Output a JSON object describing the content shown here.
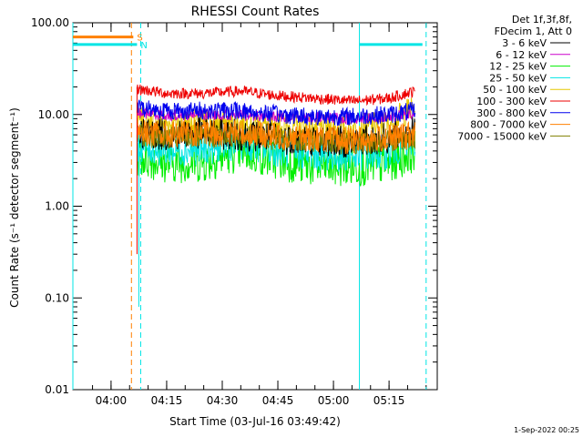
{
  "chart_data": {
    "type": "line",
    "title": "RHESSI Count Rates",
    "xlabel": "Start Time (03-Jul-16 03:49:42)",
    "ylabel": "Count Rate (s⁻¹ detector segment⁻¹)",
    "yscale": "log",
    "ylim": [
      0.01,
      100
    ],
    "xlim": [
      "03:49:42",
      "05:28:00"
    ],
    "x_ticks": [
      "04:00",
      "04:15",
      "04:30",
      "04:45",
      "05:00",
      "05:15"
    ],
    "y_ticks": [
      "0.01",
      "0.10",
      "1.00",
      "10.00",
      "100.00"
    ],
    "legend_header": [
      "Det 1f,3f,8f,",
      "FDecim 1, Att 0"
    ],
    "legend_position": "top-right",
    "footer_date": "1-Sep-2022 00:25",
    "series": [
      {
        "name": "3 - 6 keV",
        "color": "#000000",
        "x": [
          "04:07",
          "04:15",
          "04:25",
          "04:35",
          "04:45",
          "04:55",
          "05:05",
          "05:15",
          "05:22"
        ],
        "y": [
          6.5,
          6.0,
          6.3,
          6.0,
          5.5,
          5.2,
          5.0,
          5.5,
          6.5
        ]
      },
      {
        "name": "6 - 12 keV",
        "color": "#cc00cc",
        "x": [
          "04:07",
          "04:15",
          "04:25",
          "04:35",
          "04:45",
          "04:55",
          "05:05",
          "05:15",
          "05:22"
        ],
        "y": [
          10.5,
          9.8,
          10.0,
          9.8,
          9.5,
          9.3,
          9.0,
          9.5,
          10.0
        ]
      },
      {
        "name": "12 - 25 keV",
        "color": "#00ee00",
        "x": [
          "04:07",
          "04:15",
          "04:25",
          "04:35",
          "04:45",
          "04:55",
          "05:05",
          "05:15",
          "05:22"
        ],
        "y": [
          3.5,
          3.0,
          3.0,
          4.0,
          3.2,
          2.7,
          2.7,
          2.9,
          4.0
        ]
      },
      {
        "name": "25 - 50 keV",
        "color": "#00e5e5",
        "x": [
          "04:07",
          "04:15",
          "04:25",
          "04:35",
          "04:45",
          "04:55",
          "05:05",
          "05:15",
          "05:22"
        ],
        "y": [
          4.5,
          4.0,
          4.2,
          4.8,
          4.0,
          3.6,
          3.5,
          3.8,
          5.0
        ]
      },
      {
        "name": "50 - 100 keV",
        "color": "#e5c800",
        "x": [
          "04:07",
          "04:15",
          "04:25",
          "04:35",
          "04:45",
          "04:55",
          "05:05",
          "05:15",
          "05:22"
        ],
        "y": [
          8.5,
          8.0,
          8.2,
          8.0,
          7.5,
          7.0,
          7.0,
          8.0,
          12.0
        ]
      },
      {
        "name": "100 - 300 keV",
        "color": "#ee0000",
        "x": [
          "04:07",
          "04:15",
          "04:25",
          "04:35",
          "04:45",
          "04:55",
          "05:05",
          "05:15",
          "05:22"
        ],
        "y": [
          19,
          17,
          17,
          18,
          16,
          15,
          14,
          15,
          18
        ]
      },
      {
        "name": "300 - 800 keV",
        "color": "#0000ee",
        "x": [
          "04:07",
          "04:15",
          "04:25",
          "04:35",
          "04:45",
          "04:55",
          "05:05",
          "05:15",
          "05:22"
        ],
        "y": [
          12,
          11,
          11,
          11,
          10,
          9.5,
          9.5,
          10,
          11
        ]
      },
      {
        "name": "800 - 7000 keV",
        "color": "#ff8000",
        "x": [
          "04:07",
          "04:15",
          "04:25",
          "04:35",
          "04:45",
          "04:55",
          "05:05",
          "05:15",
          "05:22"
        ],
        "y": [
          6.5,
          6.0,
          6.2,
          6.3,
          5.8,
          5.5,
          5.2,
          5.5,
          6.0
        ]
      },
      {
        "name": "7000 - 15000 keV",
        "color": "#808000",
        "x": [
          "04:07",
          "04:15",
          "04:25",
          "04:35",
          "04:45",
          "04:55",
          "05:05",
          "05:15",
          "05:22"
        ],
        "y": [
          6.0,
          5.5,
          5.7,
          5.9,
          5.4,
          5.1,
          4.8,
          5.1,
          5.6
        ]
      }
    ],
    "state_bars": [
      {
        "label": "S",
        "color": "#ff8000",
        "value": 70,
        "x": [
          "03:49:42",
          "04:06"
        ]
      },
      {
        "label": "N",
        "color": "#00e5e5",
        "value": 58,
        "x": [
          "03:49:42",
          "04:07"
        ]
      },
      {
        "label": "",
        "color": "#00e5e5",
        "value": 58,
        "x": [
          "05:07",
          "05:24"
        ]
      }
    ],
    "vlines": [
      {
        "x": "03:49:42",
        "color": "#00e5e5",
        "style": "solid"
      },
      {
        "x": "04:05:30",
        "color": "#ff8000",
        "style": "dashed"
      },
      {
        "x": "04:08",
        "color": "#00e5e5",
        "style": "dashed"
      },
      {
        "x": "05:07",
        "color": "#00e5e5",
        "style": "solid"
      },
      {
        "x": "05:25",
        "color": "#00e5e5",
        "style": "dashed"
      }
    ]
  }
}
